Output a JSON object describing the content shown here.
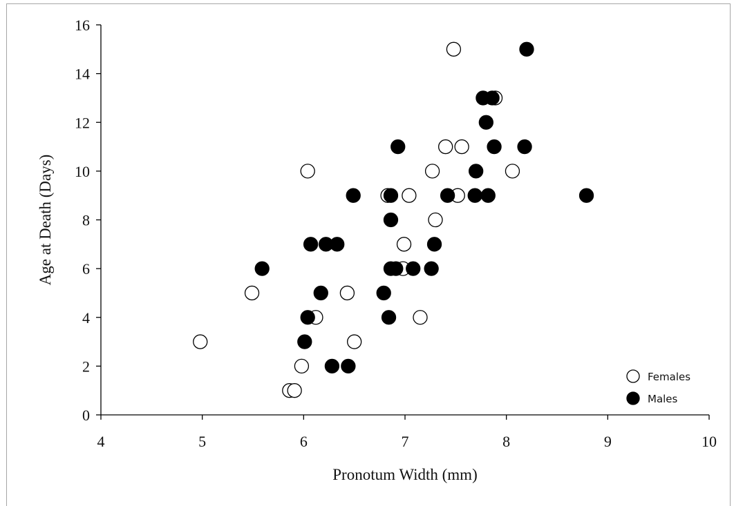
{
  "chart_data": {
    "type": "scatter",
    "title": "",
    "xlabel": "Pronotum Width (mm)",
    "ylabel": "Age at Death (Days)",
    "xlim": [
      4,
      10
    ],
    "ylim": [
      0,
      16
    ],
    "xticks": [
      "4",
      "5",
      "6",
      "7",
      "8",
      "9",
      "10"
    ],
    "yticks": [
      "0",
      "2",
      "4",
      "6",
      "8",
      "10",
      "12",
      "14",
      "16"
    ],
    "grid": false,
    "legend_position": "bottom-right",
    "series": [
      {
        "name": "Females",
        "color": "#ffffff",
        "edge": "#000000",
        "points": [
          [
            4.98,
            3
          ],
          [
            5.49,
            5
          ],
          [
            5.86,
            1
          ],
          [
            5.91,
            1
          ],
          [
            5.98,
            2
          ],
          [
            6.04,
            10
          ],
          [
            6.12,
            4
          ],
          [
            6.43,
            5
          ],
          [
            6.5,
            3
          ],
          [
            6.83,
            9
          ],
          [
            6.98,
            6
          ],
          [
            6.99,
            7
          ],
          [
            7.04,
            9
          ],
          [
            7.15,
            4
          ],
          [
            7.27,
            10
          ],
          [
            7.3,
            8
          ],
          [
            7.4,
            11
          ],
          [
            7.48,
            15
          ],
          [
            7.52,
            9
          ],
          [
            7.56,
            11
          ],
          [
            7.89,
            13
          ],
          [
            8.06,
            10
          ]
        ]
      },
      {
        "name": "Males",
        "color": "#000000",
        "edge": "#000000",
        "points": [
          [
            5.59,
            6
          ],
          [
            6.01,
            3
          ],
          [
            6.04,
            4
          ],
          [
            6.07,
            7
          ],
          [
            6.17,
            5
          ],
          [
            6.22,
            7
          ],
          [
            6.28,
            2
          ],
          [
            6.33,
            7
          ],
          [
            6.44,
            2
          ],
          [
            6.49,
            9
          ],
          [
            6.79,
            5
          ],
          [
            6.84,
            4
          ],
          [
            6.86,
            8
          ],
          [
            6.86,
            6
          ],
          [
            6.86,
            9
          ],
          [
            6.91,
            6
          ],
          [
            6.93,
            11
          ],
          [
            7.08,
            6
          ],
          [
            7.26,
            6
          ],
          [
            7.29,
            7
          ],
          [
            7.42,
            9
          ],
          [
            7.69,
            9
          ],
          [
            7.7,
            10
          ],
          [
            7.77,
            13
          ],
          [
            7.8,
            12
          ],
          [
            7.82,
            9
          ],
          [
            7.86,
            13
          ],
          [
            7.88,
            11
          ],
          [
            8.18,
            11
          ],
          [
            8.2,
            15
          ],
          [
            8.79,
            9
          ]
        ]
      }
    ]
  }
}
